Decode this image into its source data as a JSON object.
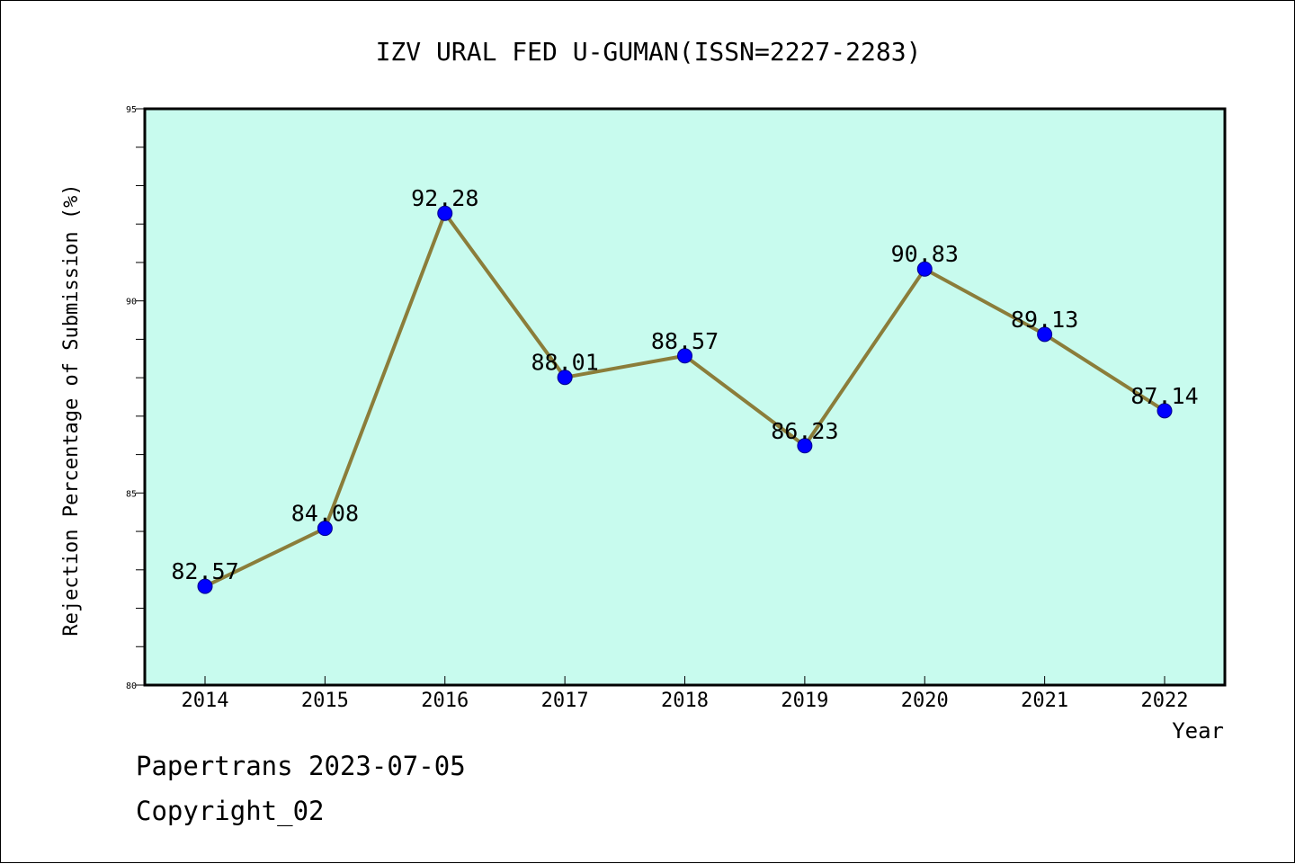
{
  "chart_data": {
    "type": "line",
    "title": "IZV URAL FED U-GUMAN(ISSN=2227-2283)",
    "xlabel": "Year",
    "ylabel": "Rejection Percentage of Submission (%)",
    "categories": [
      "2014",
      "2015",
      "2016",
      "2017",
      "2018",
      "2019",
      "2020",
      "2021",
      "2022"
    ],
    "values": [
      82.57,
      84.08,
      92.28,
      88.01,
      88.57,
      86.23,
      90.83,
      89.13,
      87.14
    ],
    "value_labels": [
      "82.57",
      "84.08",
      "92.28",
      "88.01",
      "88.57",
      "86.23",
      "90.83",
      "89.13",
      "87.14"
    ],
    "ylim": [
      80,
      95
    ],
    "yticks": [
      80,
      85,
      90,
      95
    ],
    "ytick_labels": [
      "80",
      "85",
      "90",
      "95"
    ],
    "minor_ytick_step": 1,
    "grid": false,
    "legend": "none",
    "colors": {
      "plot_background": "#c8fbee",
      "line": "#8b7d3a",
      "marker": "#0000ff",
      "axis": "#000000"
    }
  },
  "footer": {
    "line1": "Papertrans 2023-07-05",
    "line2": "Copyright_02"
  }
}
